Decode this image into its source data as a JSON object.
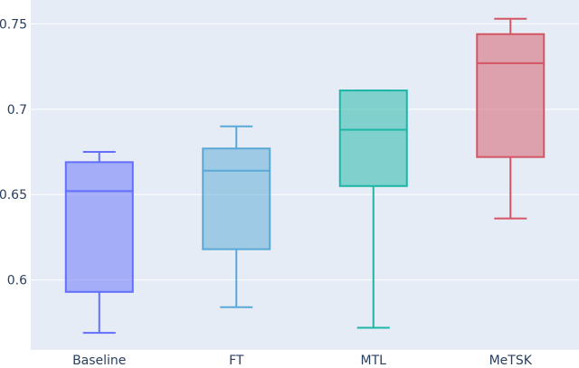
{
  "chart_data": {
    "type": "box",
    "title": "",
    "xlabel": "",
    "ylabel": "",
    "ylim": [
      0.559,
      0.764
    ],
    "yticks": [
      "0.6",
      "0.65",
      "0.7",
      "0.75"
    ],
    "ytick_values": [
      0.6,
      0.65,
      0.7,
      0.75
    ],
    "grid": true,
    "background": "#e5ecf6",
    "categories": [
      "Baseline",
      "FT",
      "MTL",
      "MeTSK"
    ],
    "series": [
      {
        "category": "Baseline",
        "min": 0.569,
        "q1": 0.593,
        "median": 0.652,
        "q3": 0.669,
        "max": 0.675,
        "color": "#636efa"
      },
      {
        "category": "FT",
        "min": 0.584,
        "q1": 0.618,
        "median": 0.664,
        "q3": 0.677,
        "max": 0.69,
        "color": "#5aa8d6"
      },
      {
        "category": "MTL",
        "min": 0.572,
        "q1": 0.655,
        "median": 0.688,
        "q3": 0.711,
        "max": 0.711,
        "color": "#1cb5a6"
      },
      {
        "category": "MeTSK",
        "min": 0.636,
        "q1": 0.672,
        "median": 0.727,
        "q3": 0.744,
        "max": 0.753,
        "color": "#d45563"
      }
    ]
  }
}
